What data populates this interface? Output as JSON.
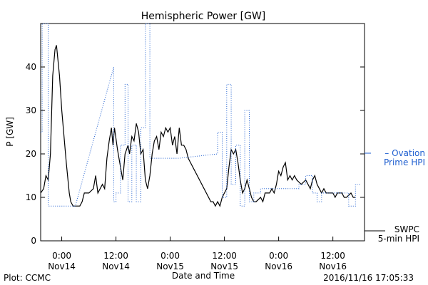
{
  "chart_data": {
    "type": "line",
    "title": "Hemispheric Power [GW]",
    "ylabel": "P [GW]",
    "xlabel": "Date and Time",
    "footer_left": "Plot: CCMC",
    "footer_right": "2016/11/16 17:05:33",
    "xlim": [
      "2016-11-13 19:20",
      "2016-11-16 19:00"
    ],
    "ylim": [
      0,
      50
    ],
    "yticks": [
      0,
      10,
      20,
      30,
      40
    ],
    "xticks": [
      {
        "at": "2016-11-14 00:00",
        "line1": "0:00",
        "line2": "Nov14"
      },
      {
        "at": "2016-11-14 12:00",
        "line1": "12:00",
        "line2": "Nov14"
      },
      {
        "at": "2016-11-15 00:00",
        "line1": "0:00",
        "line2": "Nov15"
      },
      {
        "at": "2016-11-15 12:00",
        "line1": "12:00",
        "line2": "Nov15"
      },
      {
        "at": "2016-11-16 00:00",
        "line1": "0:00",
        "line2": "Nov16"
      },
      {
        "at": "2016-11-16 12:00",
        "line1": "12:00",
        "line2": "Nov16"
      }
    ],
    "legend": [
      {
        "series": "ovation",
        "line1": "– Ovation",
        "line2": "Prime HPI",
        "color": "#1f5fd0"
      },
      {
        "series": "swpc",
        "line1": "SWPC",
        "line2": "5-min HPI",
        "color": "#000000"
      }
    ],
    "series": [
      {
        "id": "swpc",
        "color": "#000000",
        "style": "solid",
        "points": [
          [
            "2016-11-13 19:20",
            11
          ],
          [
            "2016-11-13 20:00",
            12
          ],
          [
            "2016-11-13 20:30",
            15
          ],
          [
            "2016-11-13 21:00",
            14
          ],
          [
            "2016-11-13 21:30",
            20
          ],
          [
            "2016-11-13 22:00",
            38
          ],
          [
            "2016-11-13 22:30",
            44
          ],
          [
            "2016-11-13 22:50",
            45
          ],
          [
            "2016-11-13 23:30",
            38
          ],
          [
            "2016-11-14 00:00",
            30
          ],
          [
            "2016-11-14 01:00",
            18
          ],
          [
            "2016-11-14 01:40",
            11
          ],
          [
            "2016-11-14 02:00",
            9
          ],
          [
            "2016-11-14 02:30",
            8
          ],
          [
            "2016-11-14 04:00",
            8
          ],
          [
            "2016-11-14 04:30",
            9
          ],
          [
            "2016-11-14 05:00",
            11
          ],
          [
            "2016-11-14 06:00",
            11
          ],
          [
            "2016-11-14 07:00",
            12
          ],
          [
            "2016-11-14 07:30",
            15
          ],
          [
            "2016-11-14 08:00",
            11
          ],
          [
            "2016-11-14 09:00",
            13
          ],
          [
            "2016-11-14 09:30",
            12
          ],
          [
            "2016-11-14 10:00",
            19
          ],
          [
            "2016-11-14 10:30",
            23
          ],
          [
            "2016-11-14 11:00",
            26
          ],
          [
            "2016-11-14 11:20",
            22
          ],
          [
            "2016-11-14 11:40",
            26
          ],
          [
            "2016-11-14 12:20",
            21
          ],
          [
            "2016-11-14 13:00",
            17
          ],
          [
            "2016-11-14 13:30",
            14
          ],
          [
            "2016-11-14 14:00",
            20
          ],
          [
            "2016-11-14 14:40",
            22
          ],
          [
            "2016-11-14 15:00",
            20
          ],
          [
            "2016-11-14 15:30",
            24
          ],
          [
            "2016-11-14 16:00",
            23
          ],
          [
            "2016-11-14 16:30",
            27
          ],
          [
            "2016-11-14 17:00",
            25
          ],
          [
            "2016-11-14 17:30",
            20
          ],
          [
            "2016-11-14 18:00",
            21
          ],
          [
            "2016-11-14 18:30",
            14
          ],
          [
            "2016-11-14 19:00",
            12
          ],
          [
            "2016-11-14 19:30",
            15
          ],
          [
            "2016-11-14 20:00",
            20
          ],
          [
            "2016-11-14 20:30",
            23
          ],
          [
            "2016-11-14 21:00",
            24
          ],
          [
            "2016-11-14 21:30",
            21
          ],
          [
            "2016-11-14 22:00",
            25
          ],
          [
            "2016-11-14 22:30",
            24
          ],
          [
            "2016-11-14 23:00",
            26
          ],
          [
            "2016-11-14 23:30",
            25
          ],
          [
            "2016-11-15 00:00",
            26
          ],
          [
            "2016-11-15 00:30",
            22
          ],
          [
            "2016-11-15 01:00",
            24
          ],
          [
            "2016-11-15 01:30",
            20
          ],
          [
            "2016-11-15 02:00",
            26
          ],
          [
            "2016-11-15 02:30",
            22
          ],
          [
            "2016-11-15 03:00",
            22
          ],
          [
            "2016-11-15 03:30",
            21
          ],
          [
            "2016-11-15 04:00",
            19
          ],
          [
            "2016-11-15 09:00",
            9
          ],
          [
            "2016-11-15 09:30",
            9
          ],
          [
            "2016-11-15 10:00",
            8
          ],
          [
            "2016-11-15 10:30",
            9
          ],
          [
            "2016-11-15 11:00",
            8
          ],
          [
            "2016-11-15 11:30",
            10
          ],
          [
            "2016-11-15 12:00",
            11
          ],
          [
            "2016-11-15 12:30",
            12
          ],
          [
            "2016-11-15 13:00",
            17
          ],
          [
            "2016-11-15 13:30",
            21
          ],
          [
            "2016-11-15 14:00",
            20
          ],
          [
            "2016-11-15 14:30",
            21
          ],
          [
            "2016-11-15 15:00",
            18
          ],
          [
            "2016-11-15 15:30",
            14
          ],
          [
            "2016-11-15 16:00",
            11
          ],
          [
            "2016-11-15 16:30",
            12
          ],
          [
            "2016-11-15 17:00",
            14
          ],
          [
            "2016-11-15 17:30",
            12
          ],
          [
            "2016-11-15 18:00",
            10
          ],
          [
            "2016-11-15 18:30",
            9
          ],
          [
            "2016-11-15 19:00",
            9
          ],
          [
            "2016-11-15 20:00",
            10
          ],
          [
            "2016-11-15 20:30",
            9
          ],
          [
            "2016-11-15 21:00",
            11
          ],
          [
            "2016-11-15 22:00",
            11
          ],
          [
            "2016-11-15 22:30",
            12
          ],
          [
            "2016-11-15 23:00",
            11
          ],
          [
            "2016-11-15 23:30",
            13
          ],
          [
            "2016-11-16 00:00",
            16
          ],
          [
            "2016-11-16 00:30",
            15
          ],
          [
            "2016-11-16 01:00",
            17
          ],
          [
            "2016-11-16 01:30",
            18
          ],
          [
            "2016-11-16 02:00",
            14
          ],
          [
            "2016-11-16 02:30",
            15
          ],
          [
            "2016-11-16 03:00",
            14
          ],
          [
            "2016-11-16 03:30",
            15
          ],
          [
            "2016-11-16 04:00",
            14
          ],
          [
            "2016-11-16 05:00",
            13
          ],
          [
            "2016-11-16 06:00",
            14
          ],
          [
            "2016-11-16 07:00",
            12
          ],
          [
            "2016-11-16 07:30",
            14
          ],
          [
            "2016-11-16 08:00",
            15
          ],
          [
            "2016-11-16 08:30",
            13
          ],
          [
            "2016-11-16 09:00",
            12
          ],
          [
            "2016-11-16 09:30",
            11
          ],
          [
            "2016-11-16 10:00",
            12
          ],
          [
            "2016-11-16 10:30",
            11
          ],
          [
            "2016-11-16 11:00",
            11
          ],
          [
            "2016-11-16 12:00",
            11
          ],
          [
            "2016-11-16 12:30",
            10
          ],
          [
            "2016-11-16 13:00",
            11
          ],
          [
            "2016-11-16 14:00",
            11
          ],
          [
            "2016-11-16 14:30",
            10
          ],
          [
            "2016-11-16 15:00",
            10
          ],
          [
            "2016-11-16 16:00",
            11
          ],
          [
            "2016-11-16 16:30",
            10
          ],
          [
            "2016-11-16 17:00",
            10
          ]
        ]
      },
      {
        "id": "ovation",
        "color": "#1f5fd0",
        "style": "dotted",
        "points": [
          [
            "2016-11-13 19:20",
            25
          ],
          [
            "2016-11-13 19:40",
            25
          ],
          [
            "2016-11-13 19:40",
            50
          ],
          [
            "2016-11-13 21:00",
            50
          ],
          [
            "2016-11-13 21:00",
            8
          ],
          [
            "2016-11-14 03:00",
            8
          ],
          [
            "2016-11-14 11:30",
            40
          ],
          [
            "2016-11-14 11:30",
            9
          ],
          [
            "2016-11-14 12:00",
            9
          ],
          [
            "2016-11-14 12:00",
            11
          ],
          [
            "2016-11-14 13:00",
            11
          ],
          [
            "2016-11-14 13:00",
            22
          ],
          [
            "2016-11-14 14:00",
            22
          ],
          [
            "2016-11-14 14:00",
            36
          ],
          [
            "2016-11-14 14:40",
            36
          ],
          [
            "2016-11-14 14:40",
            9
          ],
          [
            "2016-11-14 15:30",
            9
          ],
          [
            "2016-11-14 15:30",
            22
          ],
          [
            "2016-11-14 16:30",
            22
          ],
          [
            "2016-11-14 16:30",
            9
          ],
          [
            "2016-11-14 17:30",
            9
          ],
          [
            "2016-11-14 17:30",
            26
          ],
          [
            "2016-11-14 18:30",
            26
          ],
          [
            "2016-11-14 18:30",
            50
          ],
          [
            "2016-11-14 19:30",
            50
          ],
          [
            "2016-11-14 19:30",
            19
          ],
          [
            "2016-11-15 02:00",
            19
          ],
          [
            "2016-11-15 10:30",
            20
          ],
          [
            "2016-11-15 10:30",
            25
          ],
          [
            "2016-11-15 11:30",
            25
          ],
          [
            "2016-11-15 11:30",
            10
          ],
          [
            "2016-11-15 12:30",
            10
          ],
          [
            "2016-11-15 12:30",
            36
          ],
          [
            "2016-11-15 13:30",
            36
          ],
          [
            "2016-11-15 13:30",
            13
          ],
          [
            "2016-11-15 14:30",
            13
          ],
          [
            "2016-11-15 14:30",
            22
          ],
          [
            "2016-11-15 15:30",
            22
          ],
          [
            "2016-11-15 15:30",
            8
          ],
          [
            "2016-11-15 16:30",
            8
          ],
          [
            "2016-11-15 16:30",
            30
          ],
          [
            "2016-11-15 17:30",
            30
          ],
          [
            "2016-11-15 17:30",
            9
          ],
          [
            "2016-11-15 18:30",
            9
          ],
          [
            "2016-11-15 18:30",
            11
          ],
          [
            "2016-11-15 20:00",
            11
          ],
          [
            "2016-11-15 20:00",
            12
          ],
          [
            "2016-11-16 04:30",
            12
          ],
          [
            "2016-11-16 04:30",
            13
          ],
          [
            "2016-11-16 06:00",
            13
          ],
          [
            "2016-11-16 06:00",
            15
          ],
          [
            "2016-11-16 07:30",
            15
          ],
          [
            "2016-11-16 07:30",
            11
          ],
          [
            "2016-11-16 08:30",
            11
          ],
          [
            "2016-11-16 08:30",
            9
          ],
          [
            "2016-11-16 09:30",
            9
          ],
          [
            "2016-11-16 09:30",
            11
          ],
          [
            "2016-11-16 15:30",
            11
          ],
          [
            "2016-11-16 15:30",
            8
          ],
          [
            "2016-11-16 17:00",
            8
          ],
          [
            "2016-11-16 17:00",
            13
          ],
          [
            "2016-11-16 18:00",
            13
          ]
        ]
      }
    ]
  }
}
